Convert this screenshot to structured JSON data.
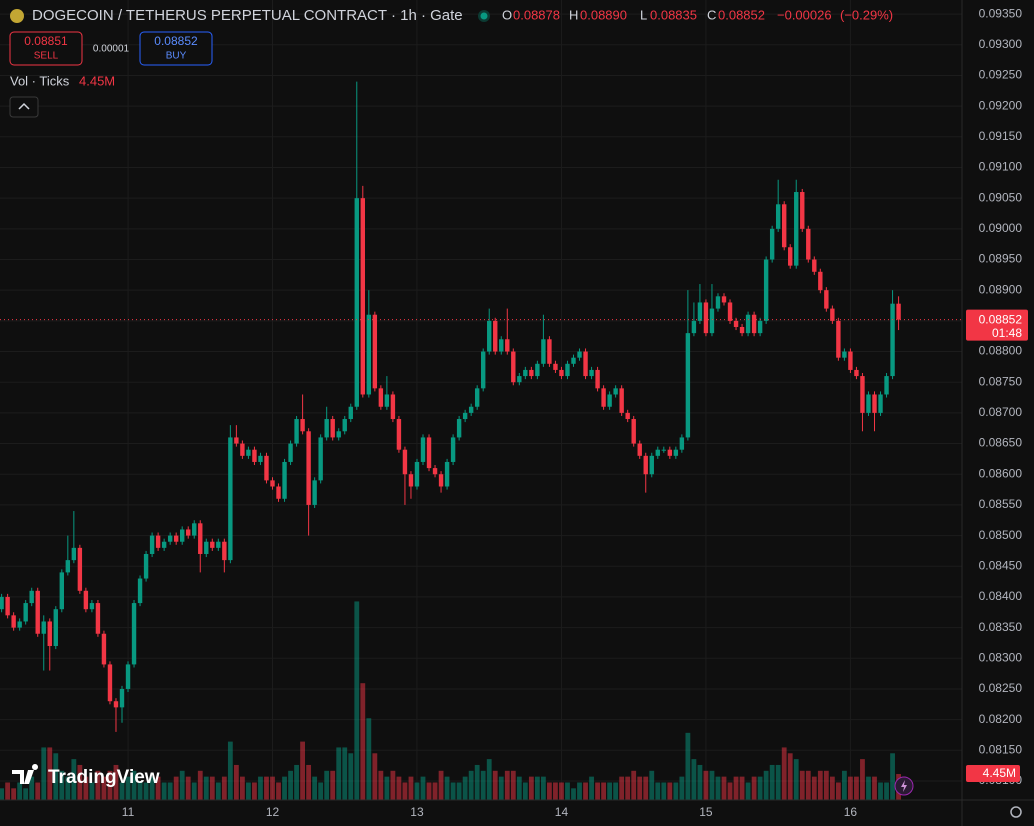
{
  "chart_data": {
    "type": "candlestick",
    "title": "DOGECOIN / TETHERUS PERPETUAL CONTRACT · 1h · Gate",
    "legend": {
      "o_key": "O",
      "o": "0.08878",
      "h_key": "H",
      "h": "0.08890",
      "l_key": "L",
      "l": "0.08835",
      "c_key": "C",
      "c": "0.08852",
      "change": "−0.00026",
      "change_pct": "(−0.29%)"
    },
    "sell": {
      "price": "0.08851",
      "label": "SELL"
    },
    "spread": "0.00001",
    "buy": {
      "price": "0.08852",
      "label": "BUY"
    },
    "volume_title": "Vol · Ticks",
    "countdown": "01:48",
    "watermark": "TradingView",
    "up_color": "#089981",
    "down_color": "#f23645",
    "ylim": [
      0.08069,
      0.09373
    ],
    "yticks": [
      {
        "value": 0.081,
        "label": "0.08100"
      },
      {
        "value": 0.0815,
        "label": "0.08150"
      },
      {
        "value": 0.082,
        "label": "0.08200"
      },
      {
        "value": 0.0825,
        "label": "0.08250"
      },
      {
        "value": 0.083,
        "label": "0.08300"
      },
      {
        "value": 0.0835,
        "label": "0.08350"
      },
      {
        "value": 0.084,
        "label": "0.08400"
      },
      {
        "value": 0.0845,
        "label": "0.08450"
      },
      {
        "value": 0.085,
        "label": "0.08500"
      },
      {
        "value": 0.0855,
        "label": "0.08550"
      },
      {
        "value": 0.086,
        "label": "0.08600"
      },
      {
        "value": 0.0865,
        "label": "0.08650"
      },
      {
        "value": 0.087,
        "label": "0.08700"
      },
      {
        "value": 0.0875,
        "label": "0.08750"
      },
      {
        "value": 0.088,
        "label": "0.08800"
      },
      {
        "value": 0.0885,
        "label": "0.08850"
      },
      {
        "value": 0.089,
        "label": "0.08900"
      },
      {
        "value": 0.0895,
        "label": "0.08950"
      },
      {
        "value": 0.09,
        "label": "0.09000"
      },
      {
        "value": 0.0905,
        "label": "0.09050"
      },
      {
        "value": 0.091,
        "label": "0.09100"
      },
      {
        "value": 0.0915,
        "label": "0.09150"
      },
      {
        "value": 0.092,
        "label": "0.09200"
      },
      {
        "value": 0.0925,
        "label": "0.09250"
      },
      {
        "value": 0.093,
        "label": "0.09300"
      },
      {
        "value": 0.0935,
        "label": "0.09350"
      }
    ],
    "categories": [
      null,
      null,
      null,
      null,
      null,
      null,
      null,
      null,
      null,
      null,
      null,
      null,
      null,
      null,
      null,
      null,
      null,
      null,
      null,
      null,
      null,
      "11",
      null,
      null,
      null,
      null,
      null,
      null,
      null,
      null,
      null,
      null,
      null,
      null,
      null,
      null,
      null,
      null,
      null,
      null,
      null,
      null,
      null,
      null,
      null,
      "12",
      null,
      null,
      null,
      null,
      null,
      null,
      null,
      null,
      null,
      null,
      null,
      null,
      null,
      null,
      null,
      null,
      null,
      null,
      null,
      null,
      null,
      null,
      null,
      "13",
      null,
      null,
      null,
      null,
      null,
      null,
      null,
      null,
      null,
      null,
      null,
      null,
      null,
      null,
      null,
      null,
      null,
      null,
      null,
      null,
      null,
      null,
      null,
      "14",
      null,
      null,
      null,
      null,
      null,
      null,
      null,
      null,
      null,
      null,
      null,
      null,
      null,
      null,
      null,
      null,
      null,
      null,
      null,
      null,
      null,
      null,
      null,
      "15",
      null,
      null,
      null,
      null,
      null,
      null,
      null,
      null,
      null,
      null,
      null,
      null,
      null,
      null,
      null,
      null,
      null,
      null,
      null,
      null,
      null,
      null,
      null,
      "16",
      null,
      null,
      null,
      null,
      null,
      null,
      null,
      null
    ],
    "ohlc": [
      [
        0.0838,
        0.08405,
        0.08375,
        0.084
      ],
      [
        0.084,
        0.08405,
        0.08365,
        0.0837
      ],
      [
        0.0837,
        0.08375,
        0.08345,
        0.0835
      ],
      [
        0.0835,
        0.08365,
        0.08345,
        0.0836
      ],
      [
        0.0836,
        0.08395,
        0.08355,
        0.0839
      ],
      [
        0.0839,
        0.08415,
        0.08385,
        0.0841
      ],
      [
        0.0841,
        0.08415,
        0.08335,
        0.0834
      ],
      [
        0.0834,
        0.0837,
        0.0828,
        0.0836
      ],
      [
        0.0836,
        0.08365,
        0.0828,
        0.0832
      ],
      [
        0.0832,
        0.08385,
        0.08315,
        0.0838
      ],
      [
        0.0838,
        0.08445,
        0.08375,
        0.0844
      ],
      [
        0.0844,
        0.085,
        0.08435,
        0.0846
      ],
      [
        0.0846,
        0.0854,
        0.08455,
        0.0848
      ],
      [
        0.0848,
        0.08485,
        0.08405,
        0.0841
      ],
      [
        0.0841,
        0.08415,
        0.08375,
        0.0838
      ],
      [
        0.0838,
        0.08395,
        0.08375,
        0.0839
      ],
      [
        0.0839,
        0.08395,
        0.08335,
        0.0834
      ],
      [
        0.0834,
        0.08345,
        0.08285,
        0.0829
      ],
      [
        0.0829,
        0.08295,
        0.08225,
        0.0823
      ],
      [
        0.0823,
        0.08235,
        0.0818,
        0.0822
      ],
      [
        0.0822,
        0.08255,
        0.08195,
        0.0825
      ],
      [
        0.0825,
        0.08295,
        0.08245,
        0.0829
      ],
      [
        0.0829,
        0.08395,
        0.08285,
        0.0839
      ],
      [
        0.0839,
        0.08435,
        0.08385,
        0.0843
      ],
      [
        0.0843,
        0.08475,
        0.08425,
        0.0847
      ],
      [
        0.0847,
        0.08505,
        0.08465,
        0.085
      ],
      [
        0.085,
        0.08505,
        0.08475,
        0.0848
      ],
      [
        0.0848,
        0.08495,
        0.08475,
        0.0849
      ],
      [
        0.0849,
        0.08505,
        0.08485,
        0.085
      ],
      [
        0.085,
        0.08505,
        0.08485,
        0.0849
      ],
      [
        0.0849,
        0.08515,
        0.08485,
        0.0851
      ],
      [
        0.0851,
        0.08515,
        0.08495,
        0.085
      ],
      [
        0.085,
        0.08525,
        0.08495,
        0.0852
      ],
      [
        0.0852,
        0.08525,
        0.0844,
        0.0847
      ],
      [
        0.0847,
        0.08495,
        0.08465,
        0.0849
      ],
      [
        0.0849,
        0.08495,
        0.08475,
        0.0848
      ],
      [
        0.0848,
        0.08495,
        0.08475,
        0.0849
      ],
      [
        0.0849,
        0.08495,
        0.0844,
        0.0846
      ],
      [
        0.0846,
        0.0868,
        0.08455,
        0.0866
      ],
      [
        0.0866,
        0.0868,
        0.08645,
        0.0865
      ],
      [
        0.0865,
        0.08655,
        0.08625,
        0.0863
      ],
      [
        0.0863,
        0.08645,
        0.08625,
        0.0864
      ],
      [
        0.0864,
        0.08645,
        0.08615,
        0.0862
      ],
      [
        0.0862,
        0.08635,
        0.08615,
        0.0863
      ],
      [
        0.0863,
        0.08635,
        0.08585,
        0.0859
      ],
      [
        0.0859,
        0.08595,
        0.08575,
        0.0858
      ],
      [
        0.0858,
        0.08585,
        0.08555,
        0.0856
      ],
      [
        0.0856,
        0.08625,
        0.08555,
        0.0862
      ],
      [
        0.0862,
        0.08655,
        0.08615,
        0.0865
      ],
      [
        0.0865,
        0.08695,
        0.08645,
        0.0869
      ],
      [
        0.0869,
        0.0873,
        0.08665,
        0.0867
      ],
      [
        0.0867,
        0.08675,
        0.085,
        0.0855
      ],
      [
        0.0855,
        0.08595,
        0.08545,
        0.0859
      ],
      [
        0.0859,
        0.08665,
        0.08585,
        0.0866
      ],
      [
        0.0866,
        0.0871,
        0.08655,
        0.0869
      ],
      [
        0.0869,
        0.08695,
        0.08655,
        0.0866
      ],
      [
        0.0866,
        0.08675,
        0.08655,
        0.0867
      ],
      [
        0.0867,
        0.08695,
        0.08665,
        0.0869
      ],
      [
        0.0869,
        0.08715,
        0.08685,
        0.0871
      ],
      [
        0.0871,
        0.0924,
        0.08705,
        0.0905
      ],
      [
        0.0905,
        0.0907,
        0.08725,
        0.0873
      ],
      [
        0.0873,
        0.089,
        0.08725,
        0.0886
      ],
      [
        0.0886,
        0.08865,
        0.08735,
        0.0874
      ],
      [
        0.0874,
        0.08745,
        0.08705,
        0.0871
      ],
      [
        0.0871,
        0.0876,
        0.08705,
        0.0873
      ],
      [
        0.0873,
        0.08735,
        0.08685,
        0.0869
      ],
      [
        0.0869,
        0.08695,
        0.08635,
        0.0864
      ],
      [
        0.0864,
        0.08645,
        0.0855,
        0.086
      ],
      [
        0.086,
        0.08605,
        0.0856,
        0.0858
      ],
      [
        0.0858,
        0.08625,
        0.08575,
        0.0862
      ],
      [
        0.0862,
        0.08665,
        0.08615,
        0.0866
      ],
      [
        0.0866,
        0.08665,
        0.08605,
        0.0861
      ],
      [
        0.0861,
        0.08615,
        0.08595,
        0.086
      ],
      [
        0.086,
        0.08605,
        0.0857,
        0.0858
      ],
      [
        0.0858,
        0.08625,
        0.08575,
        0.0862
      ],
      [
        0.0862,
        0.08665,
        0.08615,
        0.0866
      ],
      [
        0.0866,
        0.08695,
        0.08655,
        0.0869
      ],
      [
        0.0869,
        0.08705,
        0.08685,
        0.087
      ],
      [
        0.087,
        0.08715,
        0.08695,
        0.0871
      ],
      [
        0.0871,
        0.08745,
        0.08705,
        0.0874
      ],
      [
        0.0874,
        0.08805,
        0.08735,
        0.088
      ],
      [
        0.088,
        0.0887,
        0.08795,
        0.0885
      ],
      [
        0.0885,
        0.08855,
        0.08795,
        0.088
      ],
      [
        0.088,
        0.08825,
        0.08795,
        0.0882
      ],
      [
        0.0882,
        0.0887,
        0.08795,
        0.088
      ],
      [
        0.088,
        0.08805,
        0.08745,
        0.0875
      ],
      [
        0.0875,
        0.08765,
        0.08745,
        0.0876
      ],
      [
        0.0876,
        0.08775,
        0.08755,
        0.0877
      ],
      [
        0.0877,
        0.08775,
        0.08755,
        0.0876
      ],
      [
        0.0876,
        0.08785,
        0.08755,
        0.0878
      ],
      [
        0.0878,
        0.0886,
        0.08775,
        0.0882
      ],
      [
        0.0882,
        0.08825,
        0.08775,
        0.0878
      ],
      [
        0.0878,
        0.08785,
        0.08765,
        0.0877
      ],
      [
        0.0877,
        0.08775,
        0.08755,
        0.0876
      ],
      [
        0.0876,
        0.08785,
        0.08755,
        0.0878
      ],
      [
        0.0878,
        0.08795,
        0.08775,
        0.0879
      ],
      [
        0.0879,
        0.08805,
        0.08785,
        0.088
      ],
      [
        0.088,
        0.08805,
        0.08755,
        0.0876
      ],
      [
        0.0876,
        0.08775,
        0.08755,
        0.0877
      ],
      [
        0.0877,
        0.08775,
        0.08735,
        0.0874
      ],
      [
        0.0874,
        0.08745,
        0.08705,
        0.0871
      ],
      [
        0.0871,
        0.08735,
        0.08705,
        0.0873
      ],
      [
        0.0873,
        0.08745,
        0.08725,
        0.0874
      ],
      [
        0.0874,
        0.08745,
        0.08695,
        0.087
      ],
      [
        0.087,
        0.08705,
        0.08685,
        0.0869
      ],
      [
        0.0869,
        0.08695,
        0.08645,
        0.0865
      ],
      [
        0.0865,
        0.08655,
        0.08625,
        0.0863
      ],
      [
        0.0863,
        0.08635,
        0.0857,
        0.086
      ],
      [
        0.086,
        0.08635,
        0.08595,
        0.0863
      ],
      [
        0.0863,
        0.08645,
        0.08625,
        0.0864
      ],
      [
        0.0864,
        0.08645,
        0.08635,
        0.0864
      ],
      [
        0.0864,
        0.08645,
        0.08625,
        0.0863
      ],
      [
        0.0863,
        0.08645,
        0.08625,
        0.0864
      ],
      [
        0.0864,
        0.08665,
        0.08635,
        0.0866
      ],
      [
        0.0866,
        0.089,
        0.08655,
        0.0883
      ],
      [
        0.0883,
        0.0888,
        0.08825,
        0.0885
      ],
      [
        0.0885,
        0.0891,
        0.08845,
        0.0888
      ],
      [
        0.0888,
        0.08885,
        0.08825,
        0.0883
      ],
      [
        0.0883,
        0.0891,
        0.08825,
        0.0887
      ],
      [
        0.0887,
        0.08895,
        0.08865,
        0.0889
      ],
      [
        0.0889,
        0.08895,
        0.08875,
        0.0888
      ],
      [
        0.0888,
        0.08885,
        0.08845,
        0.0885
      ],
      [
        0.0885,
        0.08855,
        0.08835,
        0.0884
      ],
      [
        0.0884,
        0.08845,
        0.08825,
        0.0883
      ],
      [
        0.0883,
        0.08865,
        0.08825,
        0.0886
      ],
      [
        0.0886,
        0.08865,
        0.08825,
        0.0883
      ],
      [
        0.0883,
        0.08855,
        0.08825,
        0.0885
      ],
      [
        0.0885,
        0.08955,
        0.08845,
        0.0895
      ],
      [
        0.0895,
        0.09005,
        0.08945,
        0.09
      ],
      [
        0.09,
        0.0908,
        0.08995,
        0.0904
      ],
      [
        0.0904,
        0.09045,
        0.08965,
        0.0897
      ],
      [
        0.0897,
        0.08975,
        0.08935,
        0.0894
      ],
      [
        0.0894,
        0.0908,
        0.08935,
        0.0906
      ],
      [
        0.0906,
        0.09065,
        0.08995,
        0.09
      ],
      [
        0.09,
        0.09005,
        0.08945,
        0.0895
      ],
      [
        0.0895,
        0.08955,
        0.08925,
        0.0893
      ],
      [
        0.0893,
        0.08935,
        0.08895,
        0.089
      ],
      [
        0.089,
        0.08905,
        0.08865,
        0.0887
      ],
      [
        0.0887,
        0.08875,
        0.08845,
        0.0885
      ],
      [
        0.0885,
        0.08855,
        0.08785,
        0.0879
      ],
      [
        0.0879,
        0.08805,
        0.08785,
        0.088
      ],
      [
        0.088,
        0.08805,
        0.08765,
        0.0877
      ],
      [
        0.0877,
        0.08775,
        0.08755,
        0.0876
      ],
      [
        0.0876,
        0.08765,
        0.0867,
        0.087
      ],
      [
        0.087,
        0.08735,
        0.08695,
        0.0873
      ],
      [
        0.0873,
        0.08735,
        0.0867,
        0.087
      ],
      [
        0.087,
        0.08735,
        0.08695,
        0.0873
      ],
      [
        0.0873,
        0.08765,
        0.08725,
        0.0876
      ],
      [
        0.0876,
        0.089,
        0.08755,
        0.08878
      ],
      [
        0.08878,
        0.0889,
        0.08835,
        0.08852
      ]
    ],
    "volume": {
      "values": [
        2,
        3,
        2,
        3,
        2,
        4,
        3,
        9,
        9,
        8,
        5,
        4,
        7,
        6,
        4,
        3,
        5,
        4,
        5,
        6,
        3,
        4,
        5,
        3,
        3,
        4,
        4,
        3,
        3,
        4,
        5,
        4,
        3,
        5,
        4,
        4,
        3,
        4,
        10,
        6,
        4,
        3,
        3,
        4,
        4,
        4,
        3,
        4,
        5,
        6,
        10,
        6,
        4,
        3,
        5,
        5,
        9,
        9,
        8,
        34,
        20,
        14,
        8,
        5,
        4,
        5,
        4,
        3,
        4,
        3,
        4,
        3,
        3,
        5,
        4,
        3,
        3,
        4,
        5,
        6,
        5,
        7,
        5,
        4,
        5,
        5,
        4,
        3,
        4,
        4,
        4,
        3,
        3,
        3,
        3,
        2,
        3,
        3,
        4,
        3,
        3,
        3,
        3,
        4,
        4,
        5,
        4,
        4,
        5,
        3,
        3,
        3,
        3,
        4,
        11.5,
        7,
        6,
        5,
        5,
        4,
        4,
        3,
        4,
        4,
        3,
        4,
        4,
        5,
        6,
        6,
        9,
        8,
        7,
        5,
        5,
        4,
        5,
        5,
        4,
        3,
        5,
        4,
        4,
        7,
        4,
        4,
        3,
        3,
        8,
        4.45
      ],
      "last_label": "4.45M"
    }
  }
}
